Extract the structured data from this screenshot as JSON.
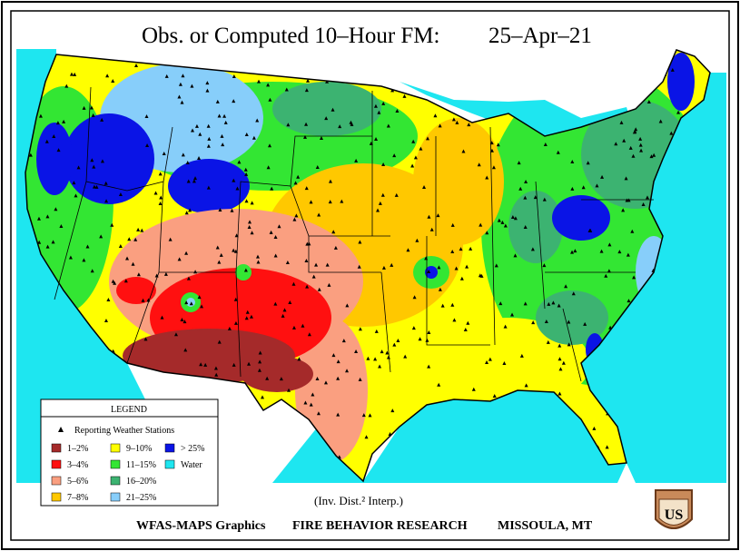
{
  "header": {
    "title": "Obs. or Computed 10–Hour FM:",
    "date": "25–Apr–21"
  },
  "legend": {
    "title": "LEGEND",
    "stations": "Reporting Weather Stations",
    "items": [
      {
        "label": "1–2%",
        "color": "#a52a2a"
      },
      {
        "label": "3–4%",
        "color": "#ff1010"
      },
      {
        "label": "5–6%",
        "color": "#fa9f80"
      },
      {
        "label": "7–8%",
        "color": "#ffc800"
      },
      {
        "label": "9–10%",
        "color": "#ffff00"
      },
      {
        "label": "11–15%",
        "color": "#33e633"
      },
      {
        "label": "16–20%",
        "color": "#3cb371"
      },
      {
        "label": "21–25%",
        "color": "#87cefa"
      },
      {
        "label": "> 25%",
        "color": "#0a14e6"
      },
      {
        "label": "Water",
        "color": "#1ee6f0"
      }
    ]
  },
  "footer": {
    "method": "(Inv. Dist.² Interp.)",
    "credit": [
      "WFAS-MAPS Graphics",
      "FIRE BEHAVIOR RESEARCH",
      "MISSOULA, MT"
    ]
  },
  "logo": {
    "text": "US"
  }
}
